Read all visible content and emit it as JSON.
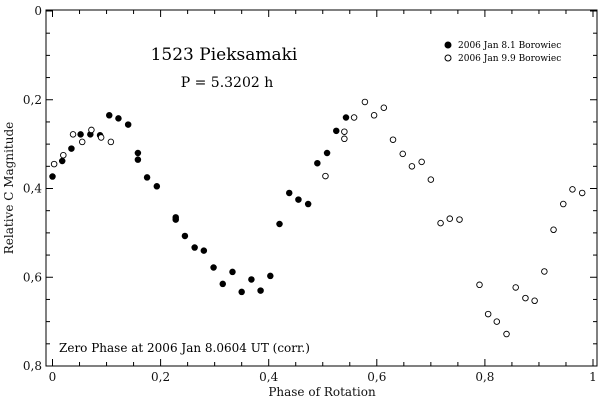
{
  "chart_data": {
    "type": "scatter",
    "title": "1523 Pieksamaki",
    "subtitle": "P = 5.3202 h",
    "xlabel": "Phase of Rotation",
    "ylabel": "Relative C Magnitude",
    "xlim": [
      0,
      1
    ],
    "ylim": [
      0,
      0.8
    ],
    "y_inverted": true,
    "x_ticks": [
      {
        "value": 0,
        "label": "0"
      },
      {
        "value": 0.2,
        "label": "0,2"
      },
      {
        "value": 0.4,
        "label": "0,4"
      },
      {
        "value": 0.6,
        "label": "0,6"
      },
      {
        "value": 0.8,
        "label": "0,8"
      },
      {
        "value": 1,
        "label": "1"
      }
    ],
    "y_ticks": [
      {
        "value": 0,
        "label": "0"
      },
      {
        "value": 0.2,
        "label": "0,2"
      },
      {
        "value": 0.4,
        "label": "0,4"
      },
      {
        "value": 0.6,
        "label": "0,6"
      },
      {
        "value": 0.8,
        "label": "0,8"
      }
    ],
    "annotation": "Zero Phase at 2006 Jan 8.0604 UT (corr.)",
    "legend_position": "top-right",
    "series": [
      {
        "name": "2006 Jan 8.1 Borowiec",
        "marker": "filled-circle",
        "points": [
          [
            0.0,
            0.373
          ],
          [
            0.018,
            0.338
          ],
          [
            0.035,
            0.31
          ],
          [
            0.052,
            0.278
          ],
          [
            0.07,
            0.278
          ],
          [
            0.088,
            0.28
          ],
          [
            0.105,
            0.235
          ],
          [
            0.122,
            0.242
          ],
          [
            0.14,
            0.256
          ],
          [
            0.158,
            0.32
          ],
          [
            0.158,
            0.335
          ],
          [
            0.175,
            0.375
          ],
          [
            0.193,
            0.395
          ],
          [
            0.228,
            0.465
          ],
          [
            0.228,
            0.47
          ],
          [
            0.245,
            0.507
          ],
          [
            0.263,
            0.533
          ],
          [
            0.28,
            0.54
          ],
          [
            0.298,
            0.578
          ],
          [
            0.315,
            0.615
          ],
          [
            0.333,
            0.588
          ],
          [
            0.35,
            0.633
          ],
          [
            0.368,
            0.605
          ],
          [
            0.385,
            0.63
          ],
          [
            0.403,
            0.597
          ],
          [
            0.42,
            0.48
          ],
          [
            0.438,
            0.41
          ],
          [
            0.455,
            0.425
          ],
          [
            0.473,
            0.435
          ],
          [
            0.49,
            0.343
          ],
          [
            0.508,
            0.32
          ],
          [
            0.525,
            0.27
          ],
          [
            0.543,
            0.24
          ]
        ]
      },
      {
        "name": "2006 Jan 9.9 Borowiec",
        "marker": "open-circle",
        "points": [
          [
            0.003,
            0.345
          ],
          [
            0.02,
            0.325
          ],
          [
            0.038,
            0.278
          ],
          [
            0.055,
            0.295
          ],
          [
            0.072,
            0.268
          ],
          [
            0.09,
            0.285
          ],
          [
            0.108,
            0.295
          ],
          [
            0.505,
            0.372
          ],
          [
            0.54,
            0.272
          ],
          [
            0.54,
            0.288
          ],
          [
            0.558,
            0.24
          ],
          [
            0.578,
            0.205
          ],
          [
            0.595,
            0.235
          ],
          [
            0.613,
            0.218
          ],
          [
            0.63,
            0.29
          ],
          [
            0.648,
            0.322
          ],
          [
            0.665,
            0.35
          ],
          [
            0.683,
            0.34
          ],
          [
            0.7,
            0.38
          ],
          [
            0.718,
            0.478
          ],
          [
            0.735,
            0.468
          ],
          [
            0.753,
            0.47
          ],
          [
            0.79,
            0.617
          ],
          [
            0.806,
            0.683
          ],
          [
            0.822,
            0.7
          ],
          [
            0.84,
            0.728
          ],
          [
            0.857,
            0.623
          ],
          [
            0.875,
            0.647
          ],
          [
            0.892,
            0.653
          ],
          [
            0.91,
            0.587
          ],
          [
            0.927,
            0.493
          ],
          [
            0.945,
            0.435
          ],
          [
            0.962,
            0.402
          ],
          [
            0.98,
            0.41
          ]
        ]
      }
    ]
  }
}
